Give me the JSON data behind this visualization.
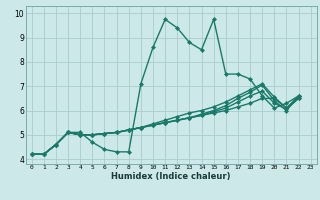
{
  "xlabel": "Humidex (Indice chaleur)",
  "xlim": [
    -0.5,
    23.5
  ],
  "ylim": [
    3.8,
    10.3
  ],
  "yticks": [
    4,
    5,
    6,
    7,
    8,
    9,
    10
  ],
  "xticks": [
    0,
    1,
    2,
    3,
    4,
    5,
    6,
    7,
    8,
    9,
    10,
    11,
    12,
    13,
    14,
    15,
    16,
    17,
    18,
    19,
    20,
    21,
    22,
    23
  ],
  "bg_color": "#cce8e8",
  "grid_color": "#aacccc",
  "line_color": "#1a7a6a",
  "line_width": 1.0,
  "marker": "D",
  "marker_size": 2.0,
  "lines": [
    [
      4.2,
      4.2,
      4.6,
      5.1,
      5.1,
      4.7,
      4.4,
      4.3,
      4.3,
      7.1,
      8.6,
      9.75,
      9.4,
      8.8,
      8.5,
      9.75,
      7.5,
      7.5,
      7.3,
      6.6,
      6.1,
      6.3,
      6.6
    ],
    [
      4.2,
      4.2,
      4.6,
      5.1,
      5.0,
      5.0,
      5.05,
      5.1,
      5.2,
      5.3,
      5.4,
      5.5,
      5.6,
      5.7,
      5.8,
      5.9,
      6.0,
      6.15,
      6.3,
      6.5,
      6.5,
      6.1,
      6.5
    ],
    [
      4.2,
      4.2,
      4.6,
      5.1,
      5.0,
      5.0,
      5.05,
      5.1,
      5.2,
      5.3,
      5.4,
      5.5,
      5.6,
      5.7,
      5.8,
      5.95,
      6.1,
      6.35,
      6.6,
      6.8,
      6.3,
      6.05,
      6.5
    ],
    [
      4.2,
      4.2,
      4.6,
      5.1,
      5.0,
      5.0,
      5.05,
      5.1,
      5.2,
      5.3,
      5.4,
      5.5,
      5.6,
      5.7,
      5.85,
      6.0,
      6.2,
      6.5,
      6.75,
      7.05,
      6.4,
      6.0,
      6.6
    ],
    [
      4.2,
      4.2,
      4.6,
      5.1,
      5.0,
      5.0,
      5.05,
      5.1,
      5.2,
      5.3,
      5.45,
      5.6,
      5.75,
      5.9,
      6.0,
      6.15,
      6.35,
      6.6,
      6.85,
      7.1,
      6.55,
      6.1,
      6.6
    ]
  ]
}
